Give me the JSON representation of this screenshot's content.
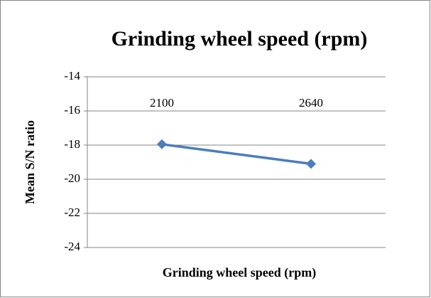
{
  "chart_data": {
    "type": "line",
    "title": "Grinding wheel speed (rpm)",
    "x_label": "Grinding wheel speed (rpm)",
    "y_label": "Mean S/N ratio",
    "categories": [
      "2100",
      "2640"
    ],
    "series": [
      {
        "name": "Mean S/N ratio",
        "color": "#4a7ebb",
        "values": [
          -17.95,
          -19.1
        ]
      }
    ],
    "ylim": [
      -24,
      -14
    ],
    "yticks": [
      -24,
      -22,
      -20,
      -18,
      -16,
      -14
    ],
    "grid": true
  }
}
